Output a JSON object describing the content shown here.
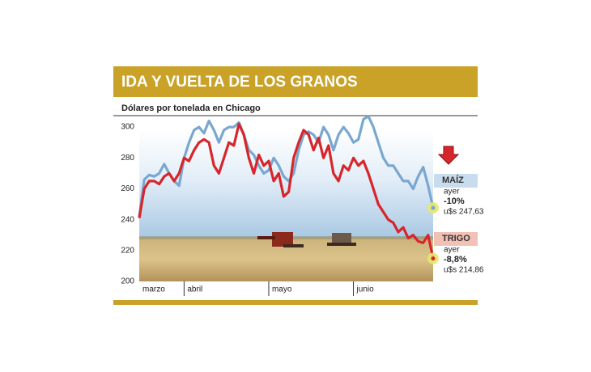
{
  "chart_data": {
    "type": "line",
    "title": "IDA Y VUELTA DE LOS GRANOS",
    "subtitle": "Dólares por tonelada en Chicago",
    "categories": [
      "marzo",
      null,
      null,
      null,
      null,
      null,
      null,
      null,
      null,
      "abril",
      null,
      null,
      null,
      null,
      null,
      null,
      null,
      null,
      null,
      null,
      null,
      null,
      null,
      null,
      null,
      null,
      "mayo",
      null,
      null,
      null,
      null,
      null,
      null,
      null,
      null,
      null,
      null,
      null,
      null,
      null,
      null,
      null,
      null,
      "junio",
      null,
      null,
      null,
      null,
      null,
      null,
      null,
      null,
      null,
      null,
      null,
      null,
      null,
      null,
      null,
      null
    ],
    "series": [
      {
        "name": "MAÍZ",
        "color": "#7aa7cf",
        "values": [
          242,
          266,
          269,
          268,
          270,
          276,
          270,
          265,
          262,
          280,
          290,
          298,
          300,
          296,
          304,
          298,
          290,
          298,
          300,
          300,
          303,
          295,
          285,
          282,
          275,
          270,
          272,
          280,
          275,
          268,
          265,
          270,
          285,
          295,
          297,
          295,
          290,
          300,
          295,
          285,
          295,
          300,
          296,
          290,
          292,
          305,
          307,
          300,
          290,
          280,
          275,
          275,
          270,
          265,
          265,
          260,
          268,
          274,
          262,
          247.63
        ]
      },
      {
        "name": "TRIGO",
        "color": "#d7262b",
        "values": [
          241,
          260,
          265,
          265,
          263,
          268,
          270,
          265,
          270,
          280,
          278,
          285,
          290,
          292,
          290,
          275,
          270,
          280,
          290,
          288,
          302,
          295,
          280,
          270,
          282,
          275,
          278,
          265,
          270,
          255,
          258,
          280,
          290,
          298,
          295,
          285,
          293,
          280,
          288,
          270,
          265,
          275,
          272,
          280,
          275,
          278,
          270,
          260,
          250,
          245,
          240,
          238,
          232,
          235,
          228,
          230,
          226,
          225,
          230,
          214.86
        ]
      }
    ],
    "annotations": [
      {
        "series": "MAÍZ",
        "note": "ayer",
        "change": "-10%",
        "price": "u$s 247,63"
      },
      {
        "series": "TRIGO",
        "note": "ayer",
        "change": "-8,8%",
        "price": "u$s 214,86"
      }
    ],
    "ylim": [
      200,
      310
    ],
    "yticks": [
      200,
      220,
      240,
      260,
      280,
      300
    ],
    "grid": false
  }
}
